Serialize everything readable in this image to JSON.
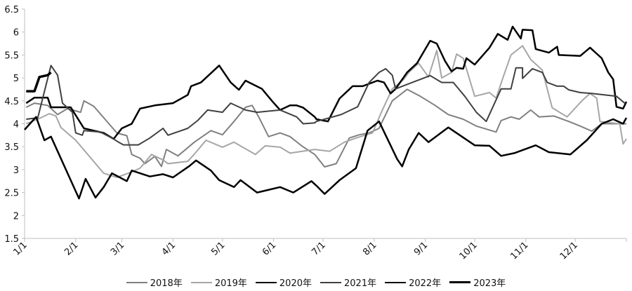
{
  "chart_data": {
    "type": "line",
    "title": "",
    "xlabel": "",
    "ylabel": "",
    "x_unit": "day of year",
    "xlim": [
      0,
      365
    ],
    "ylim": [
      1.5,
      6.5
    ],
    "yticks": [
      "1.5",
      "2",
      "2.5",
      "3",
      "3.5",
      "4",
      "4.5",
      "5",
      "5.5",
      "6",
      "6.5"
    ],
    "ytick_values": [
      1.5,
      2,
      2.5,
      3,
      3.5,
      4,
      4.5,
      5,
      5.5,
      6,
      6.5
    ],
    "xticks": [
      "1/1",
      "2/1",
      "3/1",
      "4/1",
      "5/1",
      "6/1",
      "7/1",
      "8/1",
      "9/1",
      "10/1",
      "11/1",
      "12/1"
    ],
    "xtick_days": [
      0,
      31,
      59,
      90,
      120,
      151,
      181,
      212,
      243,
      273,
      304,
      334
    ],
    "grid": false,
    "legend_position": "bottom",
    "series": [
      {
        "name": "2018年",
        "color": "#808080",
        "width": 2,
        "x": [
          1,
          6,
          14,
          20,
          26,
          34,
          36,
          42,
          56,
          62,
          65,
          70,
          73,
          79,
          83,
          86,
          93,
          103,
          113,
          120,
          127,
          134,
          138,
          142,
          148,
          155,
          161,
          168,
          176,
          182,
          189,
          197,
          203,
          209,
          215,
          223,
          232,
          240,
          249,
          257,
          266,
          274,
          286,
          289,
          295,
          300,
          307,
          312,
          321,
          330,
          337,
          344,
          350,
          365
        ],
        "y": [
          4.36,
          4.45,
          4.4,
          4.2,
          4.33,
          4.25,
          4.5,
          4.38,
          3.8,
          3.74,
          3.33,
          3.25,
          3.13,
          3.29,
          3.07,
          3.44,
          3.3,
          3.6,
          3.85,
          3.76,
          4.05,
          4.36,
          4.4,
          4.15,
          3.72,
          3.8,
          3.72,
          3.52,
          3.33,
          3.06,
          3.13,
          3.69,
          3.76,
          3.8,
          3.9,
          4.5,
          4.75,
          4.6,
          4.4,
          4.2,
          4.1,
          3.95,
          3.82,
          4.07,
          4.15,
          4.1,
          4.3,
          4.15,
          4.17,
          4.05,
          3.95,
          3.84,
          4.0,
          4.0
        ]
      },
      {
        "name": "2019年",
        "color": "#a6a6a6",
        "width": 2,
        "x": [
          1,
          8,
          15,
          19,
          22,
          31,
          48,
          56,
          65,
          70,
          77,
          84,
          87,
          99,
          104,
          110,
          120,
          127,
          140,
          146,
          155,
          161,
          176,
          185,
          194,
          202,
          211,
          217,
          223,
          230,
          233,
          239,
          245,
          250,
          253,
          259,
          262,
          266,
          273,
          282,
          286,
          290,
          295,
          302,
          307,
          314,
          320,
          329,
          338,
          343,
          347,
          349,
          361,
          363,
          365
        ],
        "y": [
          4.0,
          4.1,
          4.22,
          4.17,
          3.92,
          3.64,
          2.92,
          2.83,
          2.95,
          3.03,
          3.33,
          3.21,
          3.13,
          3.18,
          3.38,
          3.64,
          3.49,
          3.6,
          3.33,
          3.52,
          3.49,
          3.36,
          3.44,
          3.4,
          3.6,
          3.7,
          3.8,
          4.3,
          4.76,
          4.97,
          5.12,
          5.32,
          5.02,
          5.6,
          5.0,
          5.12,
          5.52,
          5.43,
          4.6,
          4.68,
          4.56,
          4.99,
          5.5,
          5.7,
          5.4,
          5.17,
          4.35,
          4.15,
          4.5,
          4.66,
          4.56,
          4.05,
          4.0,
          3.56,
          3.67
        ]
      },
      {
        "name": "2020年",
        "color": "#000000",
        "width": 2.5,
        "x": [
          1,
          6,
          14,
          16,
          28,
          36,
          48,
          54,
          59,
          65,
          70,
          79,
          90,
          99,
          101,
          107,
          118,
          125,
          130,
          134,
          144,
          150,
          155,
          161,
          165,
          169,
          176,
          177,
          184,
          191,
          199,
          205,
          214,
          218,
          222,
          225,
          232,
          238,
          246,
          250,
          255,
          259,
          262,
          266,
          268,
          273,
          282,
          287,
          293,
          296,
          301,
          302,
          308,
          310,
          318,
          323,
          324,
          337,
          343,
          350,
          354,
          357,
          359,
          363,
          365
        ],
        "y": [
          4.45,
          4.57,
          4.57,
          4.36,
          4.36,
          3.9,
          3.8,
          3.67,
          3.9,
          4.0,
          4.33,
          4.4,
          4.45,
          4.63,
          4.82,
          4.9,
          5.27,
          4.9,
          4.74,
          4.94,
          4.76,
          4.5,
          4.3,
          4.4,
          4.4,
          4.35,
          4.15,
          4.1,
          4.05,
          4.55,
          4.82,
          4.82,
          4.94,
          4.9,
          4.66,
          4.76,
          5.12,
          5.32,
          5.81,
          5.75,
          5.37,
          5.14,
          5.22,
          5.2,
          5.43,
          5.29,
          5.66,
          5.96,
          5.83,
          6.12,
          5.86,
          6.05,
          6.04,
          5.63,
          5.55,
          5.68,
          5.5,
          5.48,
          5.66,
          5.43,
          5.12,
          4.97,
          4.37,
          4.33,
          4.48
        ]
      },
      {
        "name": "2021年",
        "color": "#404040",
        "width": 2,
        "x": [
          1,
          8,
          16,
          20,
          23,
          29,
          31,
          35,
          36,
          46,
          53,
          57,
          60,
          69,
          76,
          84,
          87,
          99,
          105,
          111,
          120,
          125,
          134,
          141,
          155,
          165,
          169,
          176,
          177,
          192,
          202,
          209,
          215,
          219,
          223,
          225,
          230,
          246,
          253,
          260,
          267,
          274,
          280,
          289,
          295,
          298,
          302,
          302,
          308,
          314,
          317,
          323,
          327,
          330,
          337,
          344,
          359,
          364
        ],
        "y": [
          4.1,
          4.13,
          5.27,
          5.06,
          4.45,
          4.25,
          3.8,
          3.75,
          3.85,
          3.82,
          3.69,
          3.6,
          3.54,
          3.54,
          3.69,
          3.9,
          3.75,
          3.9,
          4.07,
          4.3,
          4.25,
          4.45,
          4.3,
          4.25,
          4.3,
          4.15,
          4.0,
          4.02,
          4.05,
          4.2,
          4.37,
          4.9,
          5.12,
          5.2,
          5.06,
          4.76,
          4.83,
          5.05,
          4.9,
          4.9,
          4.6,
          4.25,
          4.05,
          4.76,
          4.76,
          5.22,
          5.22,
          4.99,
          5.2,
          5.12,
          4.9,
          4.82,
          4.82,
          4.74,
          4.68,
          4.66,
          4.6,
          4.45
        ]
      },
      {
        "name": "2022年",
        "color": "#000000",
        "width": 2.5,
        "x": [
          0,
          7,
          12,
          16,
          33,
          37,
          43,
          48,
          53,
          62,
          65,
          76,
          84,
          90,
          100,
          104,
          113,
          118,
          127,
          131,
          141,
          155,
          163,
          174,
          177,
          182,
          191,
          201,
          208,
          215,
          226,
          229,
          233,
          239,
          245,
          257,
          273,
          282,
          289,
          297,
          310,
          318,
          331,
          341,
          350,
          357,
          363,
          365
        ],
        "y": [
          3.87,
          4.15,
          3.64,
          3.72,
          2.37,
          2.8,
          2.39,
          2.62,
          2.92,
          2.75,
          2.98,
          2.85,
          2.9,
          2.83,
          3.08,
          3.2,
          2.98,
          2.77,
          2.62,
          2.77,
          2.5,
          2.62,
          2.5,
          2.75,
          2.65,
          2.47,
          2.77,
          3.03,
          3.85,
          4.05,
          3.23,
          3.07,
          3.44,
          3.8,
          3.6,
          3.92,
          3.53,
          3.52,
          3.3,
          3.36,
          3.53,
          3.38,
          3.33,
          3.64,
          4.0,
          4.1,
          4.0,
          4.13
        ]
      },
      {
        "name": "2023年",
        "color": "#000000",
        "width": 3.5,
        "x": [
          1,
          6,
          9,
          14,
          16
        ],
        "y": [
          4.71,
          4.71,
          5.02,
          5.06,
          5.12
        ]
      }
    ]
  }
}
